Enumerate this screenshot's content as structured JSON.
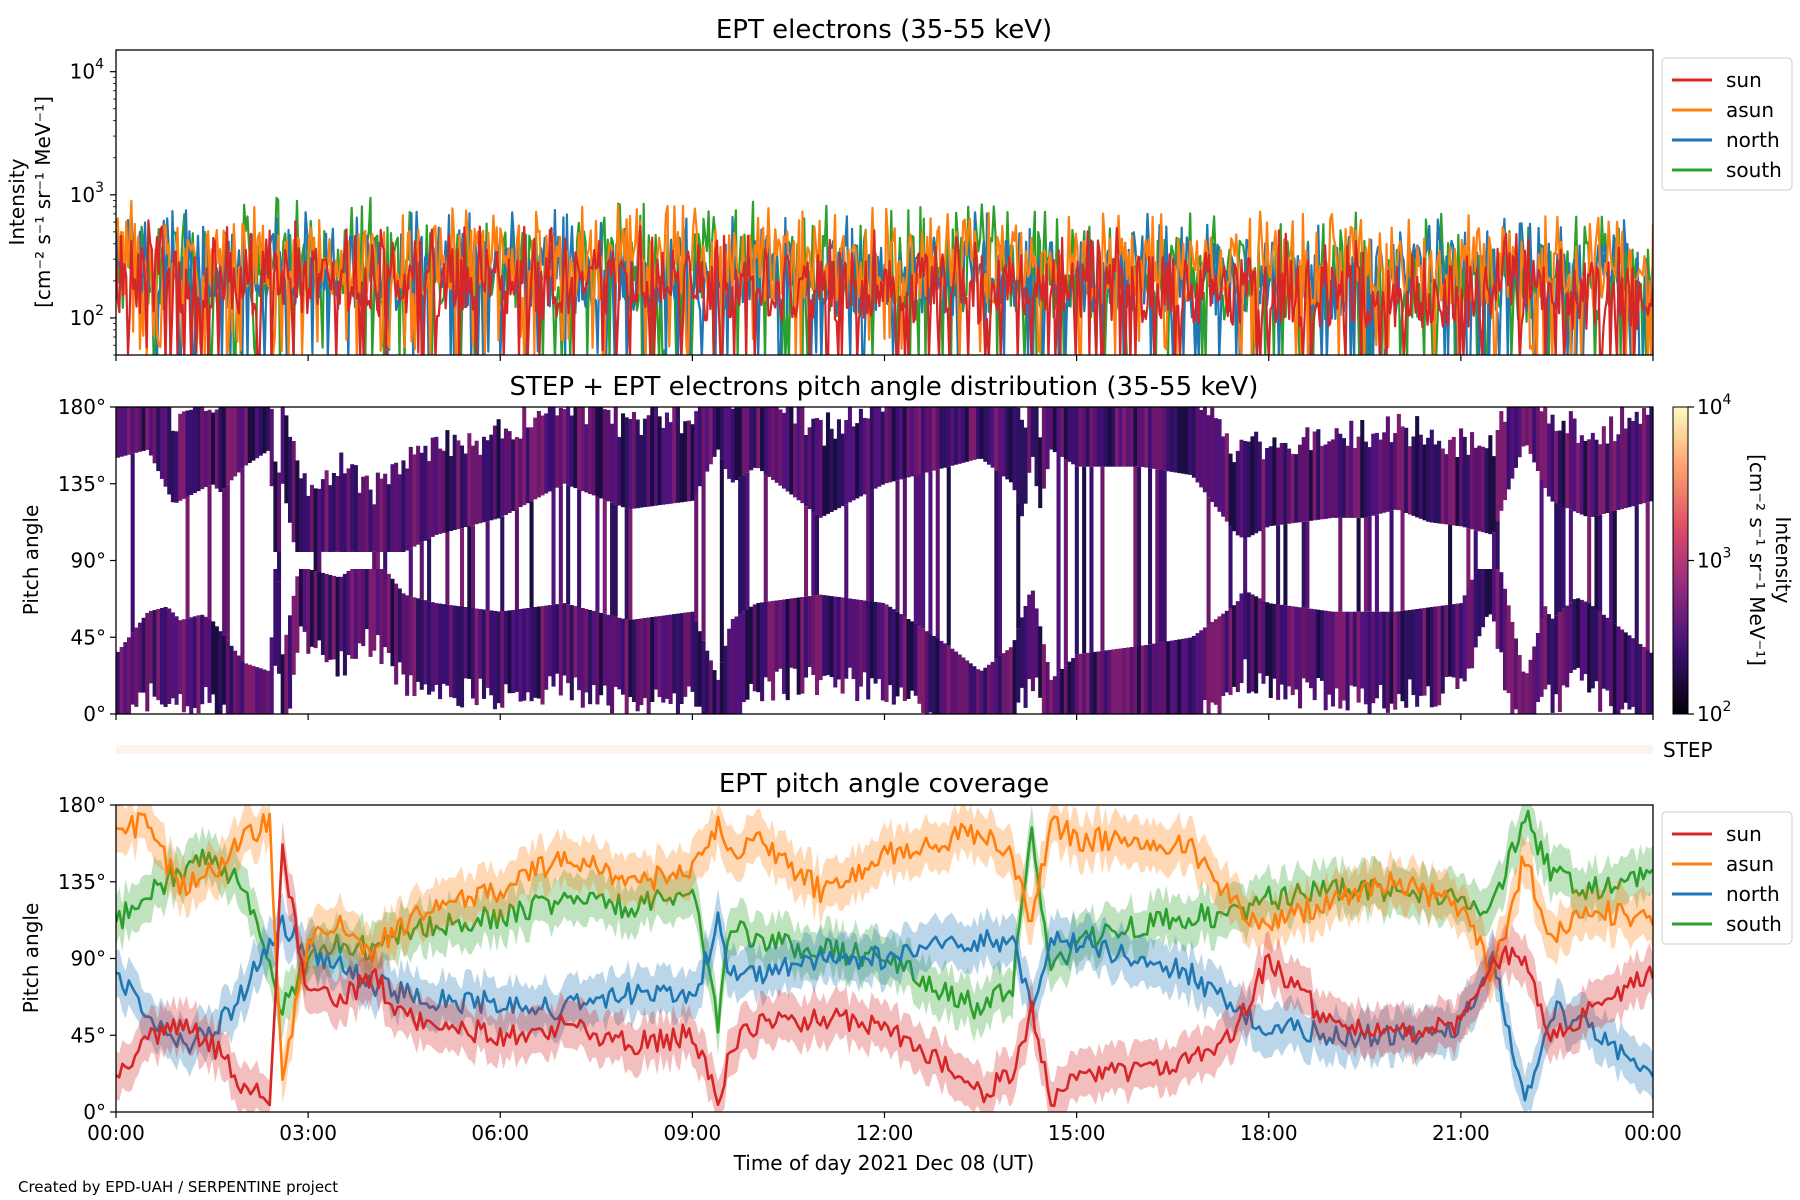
{
  "credit": "Created by EPD-UAH / SERPENTINE project",
  "xaxis": {
    "label": "Time of day 2021 Dec 08 (UT)",
    "ticks": [
      "00:00",
      "03:00",
      "06:00",
      "09:00",
      "12:00",
      "15:00",
      "18:00",
      "21:00",
      "00:00"
    ],
    "range_hours": [
      0,
      24
    ]
  },
  "colors": {
    "sun": "#d62728",
    "asun": "#ff7f0e",
    "north": "#1f77b4",
    "south": "#2ca02c",
    "colormap": [
      "#000004",
      "#3b0f70",
      "#8c2981",
      "#de4968",
      "#fe9f6d",
      "#fcfdbf"
    ]
  },
  "chart_data": [
    {
      "id": "intensity",
      "type": "line",
      "title": "EPT electrons (35-55 keV)",
      "ylabel_line1": "Intensity",
      "ylabel_line2": "[cm⁻² s⁻¹ sr⁻¹ MeV⁻¹]",
      "yscale": "log",
      "ylim": [
        50,
        15000
      ],
      "yticks": [
        {
          "base": "10",
          "exp": "2",
          "value": 100
        },
        {
          "base": "10",
          "exp": "3",
          "value": 1000
        },
        {
          "base": "10",
          "exp": "4",
          "value": 10000
        }
      ],
      "legend_placement": "outside-right-top",
      "series": [
        {
          "name": "sun",
          "color": "#d62728",
          "typical": 200,
          "spread_low": 60,
          "spread_high": 650
        },
        {
          "name": "asun",
          "color": "#ff7f0e",
          "typical": 300,
          "spread_low": 80,
          "spread_high": 900
        },
        {
          "name": "north",
          "color": "#1f77b4",
          "typical": 250,
          "spread_low": 60,
          "spread_high": 850
        },
        {
          "name": "south",
          "color": "#2ca02c",
          "typical": 250,
          "spread_low": 60,
          "spread_high": 1000
        }
      ]
    },
    {
      "id": "pad",
      "type": "heatmap",
      "title": "STEP + EPT electrons pitch angle distribution (35-55 keV)",
      "ylabel": "Pitch angle",
      "ylim": [
        0,
        180
      ],
      "yticks": [
        "0°",
        "45°",
        "90°",
        "135°",
        "180°"
      ],
      "colorbar": {
        "label_line1": "Intensity",
        "label_line2": "[cm⁻² s⁻¹ sr⁻¹ MeV⁻¹]",
        "scale": "log",
        "range": [
          100,
          10000
        ],
        "ticks": [
          {
            "base": "10",
            "exp": "2"
          },
          {
            "base": "10",
            "exp": "3"
          },
          {
            "base": "10",
            "exp": "4"
          }
        ]
      }
    },
    {
      "id": "step",
      "type": "bar",
      "label": "STEP",
      "color": "#fff1ee"
    },
    {
      "id": "coverage",
      "type": "line",
      "title": "EPT pitch angle coverage",
      "ylabel": "Pitch angle",
      "ylim": [
        0,
        180
      ],
      "yticks": [
        "0°",
        "45°",
        "90°",
        "135°",
        "180°"
      ],
      "legend_placement": "outside-right-top",
      "x_hours": [
        0,
        0.5,
        1,
        1.5,
        2,
        2.4,
        2.6,
        3,
        3.5,
        4,
        4.5,
        5,
        6,
        7,
        8,
        9,
        9.4,
        9.6,
        10,
        11,
        12,
        13,
        13.5,
        14,
        14.3,
        14.6,
        15,
        16,
        16.8,
        17.5,
        18,
        19,
        20,
        21,
        21.5,
        22,
        22.4,
        23,
        24
      ],
      "series": [
        {
          "name": "sun",
          "color": "#d62728",
          "values": [
            20,
            45,
            50,
            40,
            15,
            10,
            150,
            70,
            65,
            80,
            55,
            50,
            45,
            50,
            40,
            45,
            5,
            40,
            50,
            55,
            50,
            25,
            10,
            25,
            60,
            5,
            20,
            25,
            30,
            50,
            90,
            50,
            45,
            50,
            90,
            90,
            40,
            60,
            80
          ]
        },
        {
          "name": "asun",
          "color": "#ff7f0e",
          "values": [
            165,
            170,
            130,
            140,
            160,
            170,
            20,
            100,
            110,
            95,
            110,
            120,
            130,
            150,
            135,
            140,
            170,
            150,
            160,
            130,
            150,
            160,
            165,
            150,
            110,
            170,
            160,
            160,
            155,
            120,
            110,
            125,
            135,
            120,
            80,
            150,
            100,
            120,
            110
          ]
        },
        {
          "name": "north",
          "color": "#1f77b4",
          "values": [
            80,
            60,
            40,
            45,
            70,
            100,
            110,
            95,
            85,
            75,
            70,
            65,
            65,
            60,
            70,
            65,
            110,
            80,
            80,
            90,
            90,
            100,
            100,
            100,
            60,
            100,
            100,
            90,
            80,
            60,
            50,
            45,
            45,
            50,
            90,
            5,
            60,
            50,
            20
          ]
        },
        {
          "name": "south",
          "color": "#2ca02c",
          "values": [
            110,
            130,
            140,
            150,
            130,
            90,
            60,
            90,
            100,
            95,
            105,
            110,
            115,
            125,
            120,
            130,
            50,
            110,
            100,
            95,
            90,
            70,
            60,
            75,
            170,
            80,
            100,
            110,
            115,
            115,
            125,
            130,
            130,
            125,
            120,
            175,
            140,
            130,
            140
          ]
        }
      ],
      "band_halfwidth": 14
    }
  ]
}
